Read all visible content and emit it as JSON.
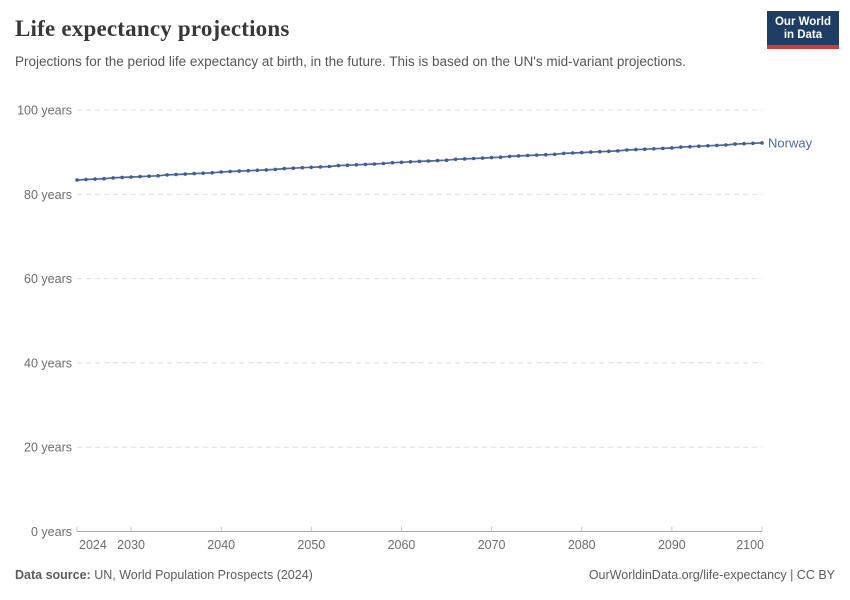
{
  "header": {
    "title": "Life expectancy projections",
    "subtitle": "Projections for the period life expectancy at birth, in the future. This is based on the UN's mid-variant projections.",
    "logo": {
      "line1": "Our World",
      "line2": "in Data"
    }
  },
  "footer": {
    "datasource_label": "Data source:",
    "datasource_value": " UN, World Population Prospects (2024)",
    "attribution": "OurWorldinData.org/life-expectancy | CC BY"
  },
  "colors": {
    "series_line": "#4c6a9c",
    "series_point": "#3f5e93",
    "grid_line": "#dedede",
    "axis_line": "#a7a7a7",
    "tick_mark": "#c8c8c8",
    "logo_navy": "#1d3d63",
    "logo_red": "#d13c39"
  },
  "chart_data": {
    "type": "line",
    "title": "Life expectancy projections",
    "subtitle": "Projections for the period life expectancy at birth, in the future. This is based on the UN's mid-variant projections.",
    "xlabel": "",
    "ylabel": "",
    "xlim": [
      2024,
      2100
    ],
    "ylim": [
      0,
      100
    ],
    "x_ticks": [
      2024,
      2030,
      2040,
      2050,
      2060,
      2070,
      2080,
      2090,
      2100
    ],
    "y_ticks": [
      0,
      20,
      40,
      60,
      80,
      100
    ],
    "y_tick_format": "{} years",
    "grid": "horizontal-dashed",
    "legend_position": "end-of-line-label",
    "series": [
      {
        "name": "Norway",
        "color": "#4c6a9c",
        "point_color": "#3f5e93",
        "x": [
          2024,
          2025,
          2026,
          2027,
          2028,
          2029,
          2030,
          2031,
          2032,
          2033,
          2034,
          2035,
          2036,
          2037,
          2038,
          2039,
          2040,
          2041,
          2042,
          2043,
          2044,
          2045,
          2046,
          2047,
          2048,
          2049,
          2050,
          2051,
          2052,
          2053,
          2054,
          2055,
          2056,
          2057,
          2058,
          2059,
          2060,
          2061,
          2062,
          2063,
          2064,
          2065,
          2066,
          2067,
          2068,
          2069,
          2070,
          2071,
          2072,
          2073,
          2074,
          2075,
          2076,
          2077,
          2078,
          2079,
          2080,
          2081,
          2082,
          2083,
          2084,
          2085,
          2086,
          2087,
          2088,
          2089,
          2090,
          2091,
          2092,
          2093,
          2094,
          2095,
          2096,
          2097,
          2098,
          2099,
          2100
        ],
        "values": [
          83.4,
          83.5,
          83.6,
          83.7,
          83.9,
          84.0,
          84.1,
          84.2,
          84.3,
          84.4,
          84.6,
          84.7,
          84.8,
          84.9,
          85.0,
          85.1,
          85.3,
          85.4,
          85.5,
          85.6,
          85.7,
          85.8,
          85.9,
          86.1,
          86.2,
          86.3,
          86.4,
          86.5,
          86.6,
          86.8,
          86.9,
          87.0,
          87.1,
          87.2,
          87.3,
          87.5,
          87.6,
          87.7,
          87.8,
          87.9,
          88.0,
          88.1,
          88.3,
          88.4,
          88.5,
          88.6,
          88.7,
          88.8,
          89.0,
          89.1,
          89.2,
          89.3,
          89.4,
          89.5,
          89.7,
          89.8,
          89.9,
          90.0,
          90.1,
          90.2,
          90.3,
          90.5,
          90.6,
          90.7,
          90.8,
          90.9,
          91.0,
          91.2,
          91.3,
          91.4,
          91.5,
          91.6,
          91.7,
          91.9,
          92.0,
          92.1,
          92.2
        ]
      }
    ]
  }
}
